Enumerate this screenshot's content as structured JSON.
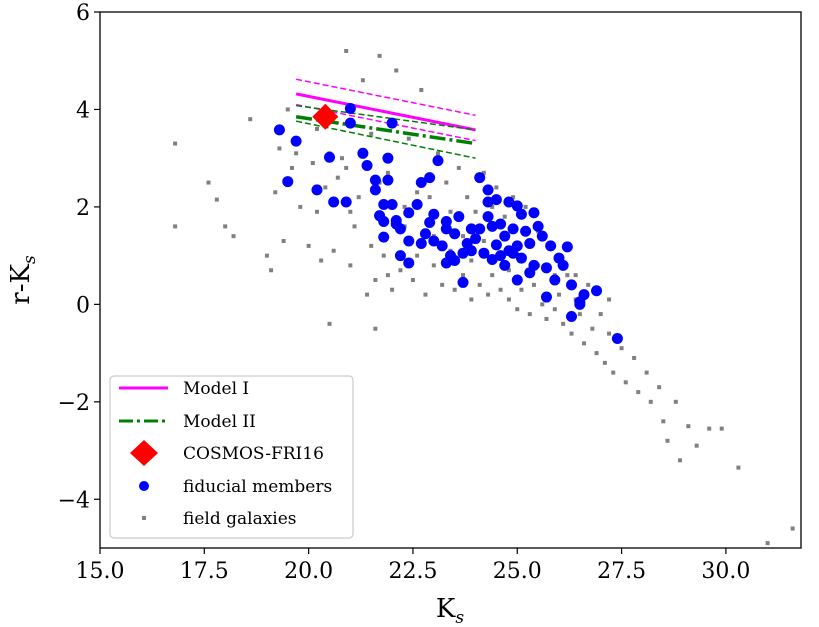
{
  "chart_data": {
    "type": "scatter",
    "title": "",
    "xlabel": "K",
    "xlabel_sub": "s",
    "ylabel": "r-K",
    "ylabel_sub": "s",
    "xlim": [
      15.0,
      31.8
    ],
    "ylim": [
      -5.0,
      6.0
    ],
    "xticks": [
      15.0,
      17.5,
      20.0,
      22.5,
      25.0,
      27.5,
      30.0
    ],
    "xtick_labels": [
      "15.0",
      "17.5",
      "20.0",
      "22.5",
      "25.0",
      "27.5",
      "30.0"
    ],
    "yticks": [
      -4,
      -2,
      0,
      2,
      4,
      6
    ],
    "ytick_labels": [
      "−4",
      "−2",
      "0",
      "2",
      "4",
      "6"
    ],
    "grid": false,
    "legend_position": "lower-left",
    "legend": [
      {
        "label": "Model I",
        "style": "solid-line",
        "color": "#ff00ff"
      },
      {
        "label": "Model II",
        "style": "dashdot-line",
        "color": "#008000"
      },
      {
        "label": "COSMOS-FRI16",
        "style": "diamond",
        "color": "#ff0000"
      },
      {
        "label": "fiducial members",
        "style": "circle",
        "color": "#0000ff"
      },
      {
        "label": "field galaxies",
        "style": "square",
        "color": "#808080"
      }
    ],
    "series": [
      {
        "name": "Model I",
        "color": "#ff00ff",
        "x": [
          19.7,
          24.0
        ],
        "main": [
          4.32,
          3.58
        ],
        "upper": [
          4.62,
          3.88
        ],
        "lower": [
          4.1,
          3.36
        ]
      },
      {
        "name": "Model II",
        "color": "#008000",
        "x": [
          19.7,
          24.0
        ],
        "main": [
          3.85,
          3.3
        ],
        "upper": [
          4.08,
          3.58
        ],
        "lower": [
          3.76,
          3.0
        ]
      },
      {
        "name": "COSMOS-FRI16",
        "color": "#ff0000",
        "points": [
          [
            20.4,
            3.85
          ]
        ]
      },
      {
        "name": "fiducial members",
        "color": "#0000ff",
        "points": [
          [
            19.3,
            3.58
          ],
          [
            19.5,
            2.52
          ],
          [
            19.7,
            3.35
          ],
          [
            20.2,
            2.35
          ],
          [
            20.5,
            3.02
          ],
          [
            20.6,
            2.1
          ],
          [
            20.9,
            2.1
          ],
          [
            21.0,
            3.72
          ],
          [
            21.0,
            4.02
          ],
          [
            21.3,
            3.1
          ],
          [
            21.4,
            2.85
          ],
          [
            21.6,
            2.35
          ],
          [
            21.6,
            2.55
          ],
          [
            21.7,
            1.82
          ],
          [
            21.8,
            1.7
          ],
          [
            21.8,
            1.38
          ],
          [
            21.9,
            3.0
          ],
          [
            21.9,
            2.55
          ],
          [
            22.0,
            3.72
          ],
          [
            22.0,
            2.05
          ],
          [
            22.1,
            1.65
          ],
          [
            22.2,
            1.55
          ],
          [
            22.4,
            1.88
          ],
          [
            22.4,
            1.3
          ],
          [
            22.6,
            2.05
          ],
          [
            22.7,
            2.5
          ],
          [
            22.7,
            1.25
          ],
          [
            22.8,
            1.45
          ],
          [
            22.9,
            1.68
          ],
          [
            23.0,
            1.3
          ],
          [
            22.9,
            2.6
          ],
          [
            23.1,
            2.95
          ],
          [
            23.0,
            1.85
          ],
          [
            23.2,
            1.2
          ],
          [
            23.3,
            1.55
          ],
          [
            23.3,
            0.85
          ],
          [
            23.4,
            1.0
          ],
          [
            23.5,
            1.45
          ],
          [
            23.6,
            1.8
          ],
          [
            23.7,
            1.05
          ],
          [
            23.7,
            0.45
          ],
          [
            23.8,
            1.25
          ],
          [
            23.9,
            1.55
          ],
          [
            24.0,
            1.35
          ],
          [
            24.1,
            1.55
          ],
          [
            24.1,
            2.6
          ],
          [
            24.2,
            1.05
          ],
          [
            24.3,
            1.8
          ],
          [
            24.3,
            2.35
          ],
          [
            24.4,
            1.6
          ],
          [
            24.4,
            0.92
          ],
          [
            24.5,
            1.22
          ],
          [
            24.5,
            2.15
          ],
          [
            24.6,
            1.65
          ],
          [
            24.6,
            1.0
          ],
          [
            24.7,
            1.4
          ],
          [
            24.7,
            0.8
          ],
          [
            24.8,
            2.1
          ],
          [
            24.9,
            1.05
          ],
          [
            24.9,
            1.55
          ],
          [
            25.0,
            0.5
          ],
          [
            25.0,
            1.2
          ],
          [
            25.1,
            1.85
          ],
          [
            25.1,
            0.95
          ],
          [
            25.2,
            1.5
          ],
          [
            25.3,
            0.65
          ],
          [
            25.3,
            1.25
          ],
          [
            25.4,
            0.8
          ],
          [
            25.4,
            1.88
          ],
          [
            25.5,
            1.6
          ],
          [
            25.6,
            1.4
          ],
          [
            25.7,
            0.75
          ],
          [
            25.7,
            0.15
          ],
          [
            25.8,
            1.2
          ],
          [
            25.9,
            0.5
          ],
          [
            26.0,
            0.95
          ],
          [
            26.1,
            0.8
          ],
          [
            26.2,
            1.18
          ],
          [
            26.3,
            0.4
          ],
          [
            26.3,
            -0.25
          ],
          [
            26.5,
            0.0
          ],
          [
            26.6,
            0.2
          ],
          [
            26.9,
            0.28
          ],
          [
            26.5,
            0.05
          ],
          [
            24.3,
            2.1
          ],
          [
            23.9,
            1.1
          ],
          [
            22.2,
            1.0
          ],
          [
            21.8,
            2.05
          ],
          [
            23.5,
            0.9
          ],
          [
            24.8,
            1.1
          ],
          [
            27.4,
            -0.7
          ],
          [
            22.1,
            1.72
          ],
          [
            23.3,
            1.7
          ],
          [
            22.4,
            0.85
          ],
          [
            25.0,
            2.02
          ]
        ]
      },
      {
        "name": "field galaxies",
        "color": "#808080",
        "points": [
          [
            16.8,
            3.3
          ],
          [
            16.8,
            1.6
          ],
          [
            17.6,
            2.5
          ],
          [
            17.8,
            2.15
          ],
          [
            18.0,
            1.6
          ],
          [
            18.2,
            1.4
          ],
          [
            18.6,
            3.8
          ],
          [
            19.0,
            1.0
          ],
          [
            19.1,
            0.7
          ],
          [
            19.2,
            2.3
          ],
          [
            19.3,
            3.2
          ],
          [
            19.4,
            1.3
          ],
          [
            19.5,
            4.0
          ],
          [
            19.6,
            2.8
          ],
          [
            19.8,
            2.0
          ],
          [
            20.0,
            1.2
          ],
          [
            20.1,
            2.9
          ],
          [
            20.2,
            3.6
          ],
          [
            20.3,
            0.9
          ],
          [
            20.4,
            2.4
          ],
          [
            20.5,
            -0.4
          ],
          [
            20.6,
            1.1
          ],
          [
            20.7,
            2.6
          ],
          [
            20.8,
            3.0
          ],
          [
            20.9,
            5.2
          ],
          [
            21.0,
            0.8
          ],
          [
            21.1,
            1.6
          ],
          [
            21.2,
            2.2
          ],
          [
            21.3,
            4.6
          ],
          [
            21.4,
            0.2
          ],
          [
            21.5,
            1.2
          ],
          [
            21.5,
            3.5
          ],
          [
            21.6,
            0.5
          ],
          [
            21.6,
            -0.5
          ],
          [
            21.7,
            5.1
          ],
          [
            21.8,
            1.0
          ],
          [
            21.9,
            2.7
          ],
          [
            22.0,
            0.3
          ],
          [
            22.1,
            4.8
          ],
          [
            22.2,
            0.7
          ],
          [
            22.3,
            2.0
          ],
          [
            22.4,
            3.4
          ],
          [
            22.5,
            0.5
          ],
          [
            22.6,
            1.0
          ],
          [
            22.7,
            4.4
          ],
          [
            22.8,
            0.2
          ],
          [
            22.9,
            2.2
          ],
          [
            23.0,
            0.8
          ],
          [
            23.1,
            3.1
          ],
          [
            23.2,
            0.4
          ],
          [
            23.3,
            2.5
          ],
          [
            23.4,
            1.9
          ],
          [
            23.5,
            0.3
          ],
          [
            23.6,
            2.8
          ],
          [
            23.7,
            0.6
          ],
          [
            23.8,
            2.2
          ],
          [
            23.9,
            0.1
          ],
          [
            24.0,
            1.9
          ],
          [
            24.1,
            0.4
          ],
          [
            24.2,
            2.7
          ],
          [
            24.3,
            0.2
          ],
          [
            24.4,
            0.6
          ],
          [
            24.5,
            2.4
          ],
          [
            24.6,
            0.3
          ],
          [
            24.7,
            1.8
          ],
          [
            24.8,
            0.1
          ],
          [
            24.9,
            2.2
          ],
          [
            25.0,
            -0.1
          ],
          [
            25.1,
            0.3
          ],
          [
            25.2,
            2.0
          ],
          [
            25.3,
            -0.2
          ],
          [
            25.4,
            0.4
          ],
          [
            25.5,
            1.5
          ],
          [
            25.6,
            0.0
          ],
          [
            25.7,
            -0.3
          ],
          [
            25.8,
            1.2
          ],
          [
            25.9,
            -0.1
          ],
          [
            26.0,
            0.2
          ],
          [
            26.1,
            -0.4
          ],
          [
            26.2,
            0.6
          ],
          [
            26.3,
            -0.6
          ],
          [
            26.4,
            0.1
          ],
          [
            26.5,
            -0.2
          ],
          [
            26.6,
            -0.8
          ],
          [
            26.7,
            0.4
          ],
          [
            26.8,
            -0.5
          ],
          [
            26.9,
            -1.0
          ],
          [
            27.0,
            -0.2
          ],
          [
            27.1,
            -1.2
          ],
          [
            27.2,
            -0.6
          ],
          [
            27.3,
            -1.4
          ],
          [
            27.5,
            -0.9
          ],
          [
            27.6,
            -1.6
          ],
          [
            27.8,
            -1.1
          ],
          [
            27.9,
            -1.8
          ],
          [
            28.1,
            -1.4
          ],
          [
            28.2,
            -2.0
          ],
          [
            28.4,
            -1.7
          ],
          [
            28.5,
            -2.4
          ],
          [
            28.6,
            -2.8
          ],
          [
            28.8,
            -2.0
          ],
          [
            28.9,
            -3.2
          ],
          [
            29.1,
            -2.5
          ],
          [
            29.3,
            -2.9
          ],
          [
            29.6,
            -2.55
          ],
          [
            29.9,
            -2.55
          ],
          [
            30.3,
            -3.35
          ],
          [
            31.0,
            -4.9
          ],
          [
            31.6,
            -4.6
          ],
          [
            20.5,
            3.1
          ],
          [
            21.0,
            1.9
          ],
          [
            21.9,
            0.6
          ],
          [
            22.8,
            1.5
          ],
          [
            23.4,
            1.1
          ],
          [
            24.2,
            1.3
          ],
          [
            24.6,
            1.0
          ],
          [
            25.1,
            1.0
          ],
          [
            25.5,
            0.8
          ],
          [
            25.9,
            0.6
          ],
          [
            26.4,
            0.6
          ],
          [
            24.8,
            0.7
          ],
          [
            23.9,
            0.9
          ],
          [
            23.0,
            1.4
          ],
          [
            22.3,
            1.6
          ],
          [
            21.7,
            2.5
          ],
          [
            20.9,
            2.8
          ],
          [
            20.2,
            1.9
          ],
          [
            19.7,
            3.1
          ],
          [
            24.4,
            2.0
          ],
          [
            25.3,
            1.3
          ],
          [
            26.0,
            0.9
          ],
          [
            26.6,
            0.2
          ],
          [
            27.2,
            0.1
          ],
          [
            23.7,
            1.4
          ],
          [
            22.6,
            2.3
          ]
        ]
      }
    ]
  }
}
